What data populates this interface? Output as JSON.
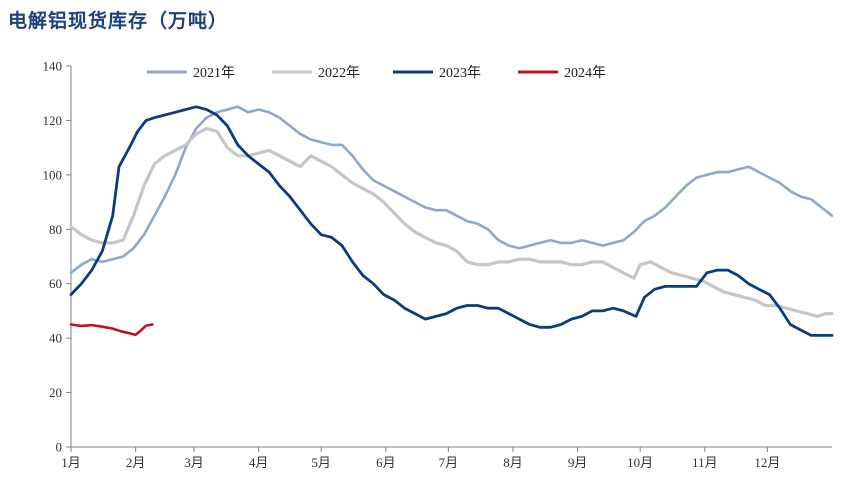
{
  "title": "电解铝现货库存（万吨）",
  "chart_data": {
    "type": "line",
    "title": "电解铝现货库存（万吨）",
    "ylim": [
      0,
      140
    ],
    "yticks": [
      0,
      20,
      40,
      60,
      80,
      100,
      120,
      140
    ],
    "xlim": [
      0,
      365
    ],
    "xticks": [
      {
        "label": "1月",
        "day": 0
      },
      {
        "label": "2月",
        "day": 31
      },
      {
        "label": "3月",
        "day": 59
      },
      {
        "label": "4月",
        "day": 90
      },
      {
        "label": "5月",
        "day": 120
      },
      {
        "label": "6月",
        "day": 151
      },
      {
        "label": "7月",
        "day": 181
      },
      {
        "label": "8月",
        "day": 212
      },
      {
        "label": "9月",
        "day": 243
      },
      {
        "label": "10月",
        "day": 273
      },
      {
        "label": "11月",
        "day": 304
      },
      {
        "label": "12月",
        "day": 334
      }
    ],
    "legend_position": "top",
    "grid": false,
    "series": [
      {
        "name": "2021年",
        "color": "#8fa8c8",
        "points": [
          [
            0,
            64
          ],
          [
            5,
            67
          ],
          [
            10,
            69
          ],
          [
            15,
            68
          ],
          [
            20,
            69
          ],
          [
            25,
            70
          ],
          [
            30,
            73
          ],
          [
            35,
            78
          ],
          [
            40,
            85
          ],
          [
            45,
            92
          ],
          [
            50,
            100
          ],
          [
            55,
            110
          ],
          [
            60,
            117
          ],
          [
            65,
            121
          ],
          [
            70,
            123
          ],
          [
            75,
            124
          ],
          [
            80,
            125
          ],
          [
            85,
            123
          ],
          [
            90,
            124
          ],
          [
            95,
            123
          ],
          [
            100,
            121
          ],
          [
            105,
            118
          ],
          [
            110,
            115
          ],
          [
            115,
            113
          ],
          [
            120,
            112
          ],
          [
            125,
            111
          ],
          [
            130,
            111
          ],
          [
            135,
            107
          ],
          [
            140,
            102
          ],
          [
            145,
            98
          ],
          [
            150,
            96
          ],
          [
            155,
            94
          ],
          [
            160,
            92
          ],
          [
            165,
            90
          ],
          [
            170,
            88
          ],
          [
            175,
            87
          ],
          [
            180,
            87
          ],
          [
            185,
            85
          ],
          [
            190,
            83
          ],
          [
            195,
            82
          ],
          [
            200,
            80
          ],
          [
            205,
            76
          ],
          [
            210,
            74
          ],
          [
            215,
            73
          ],
          [
            220,
            74
          ],
          [
            225,
            75
          ],
          [
            230,
            76
          ],
          [
            235,
            75
          ],
          [
            240,
            75
          ],
          [
            245,
            76
          ],
          [
            250,
            75
          ],
          [
            255,
            74
          ],
          [
            260,
            75
          ],
          [
            265,
            76
          ],
          [
            270,
            79
          ],
          [
            275,
            83
          ],
          [
            280,
            85
          ],
          [
            285,
            88
          ],
          [
            290,
            92
          ],
          [
            295,
            96
          ],
          [
            300,
            99
          ],
          [
            305,
            100
          ],
          [
            310,
            101
          ],
          [
            315,
            101
          ],
          [
            320,
            102
          ],
          [
            325,
            103
          ],
          [
            330,
            101
          ],
          [
            335,
            99
          ],
          [
            340,
            97
          ],
          [
            345,
            94
          ],
          [
            350,
            92
          ],
          [
            355,
            91
          ],
          [
            360,
            88
          ],
          [
            365,
            85
          ]
        ]
      },
      {
        "name": "2022年",
        "color": "#c6c6c6",
        "points": [
          [
            0,
            81
          ],
          [
            5,
            78
          ],
          [
            10,
            76
          ],
          [
            15,
            75
          ],
          [
            20,
            75
          ],
          [
            25,
            76
          ],
          [
            30,
            85
          ],
          [
            35,
            96
          ],
          [
            40,
            104
          ],
          [
            45,
            107
          ],
          [
            50,
            109
          ],
          [
            55,
            111
          ],
          [
            60,
            115
          ],
          [
            65,
            117
          ],
          [
            70,
            116
          ],
          [
            75,
            110
          ],
          [
            80,
            107
          ],
          [
            85,
            107
          ],
          [
            90,
            108
          ],
          [
            95,
            109
          ],
          [
            100,
            107
          ],
          [
            105,
            105
          ],
          [
            110,
            103
          ],
          [
            115,
            107
          ],
          [
            120,
            105
          ],
          [
            125,
            103
          ],
          [
            130,
            100
          ],
          [
            135,
            97
          ],
          [
            140,
            95
          ],
          [
            145,
            93
          ],
          [
            150,
            90
          ],
          [
            155,
            86
          ],
          [
            160,
            82
          ],
          [
            165,
            79
          ],
          [
            170,
            77
          ],
          [
            175,
            75
          ],
          [
            180,
            74
          ],
          [
            185,
            72
          ],
          [
            190,
            68
          ],
          [
            195,
            67
          ],
          [
            200,
            67
          ],
          [
            205,
            68
          ],
          [
            210,
            68
          ],
          [
            215,
            69
          ],
          [
            220,
            69
          ],
          [
            225,
            68
          ],
          [
            230,
            68
          ],
          [
            235,
            68
          ],
          [
            240,
            67
          ],
          [
            245,
            67
          ],
          [
            250,
            68
          ],
          [
            255,
            68
          ],
          [
            260,
            66
          ],
          [
            265,
            64
          ],
          [
            270,
            62
          ],
          [
            273,
            67
          ],
          [
            278,
            68
          ],
          [
            283,
            66
          ],
          [
            288,
            64
          ],
          [
            293,
            63
          ],
          [
            298,
            62
          ],
          [
            303,
            61
          ],
          [
            308,
            59
          ],
          [
            313,
            57
          ],
          [
            318,
            56
          ],
          [
            323,
            55
          ],
          [
            328,
            54
          ],
          [
            333,
            52
          ],
          [
            338,
            52
          ],
          [
            343,
            51
          ],
          [
            348,
            50
          ],
          [
            353,
            49
          ],
          [
            358,
            48
          ],
          [
            362,
            49
          ],
          [
            365,
            49
          ]
        ]
      },
      {
        "name": "2023年",
        "color": "#0c3c7c",
        "points": [
          [
            0,
            56
          ],
          [
            5,
            60
          ],
          [
            10,
            65
          ],
          [
            15,
            72
          ],
          [
            20,
            85
          ],
          [
            23,
            103
          ],
          [
            28,
            110
          ],
          [
            32,
            116
          ],
          [
            36,
            120
          ],
          [
            40,
            121
          ],
          [
            45,
            122
          ],
          [
            50,
            123
          ],
          [
            55,
            124
          ],
          [
            60,
            125
          ],
          [
            65,
            124
          ],
          [
            70,
            122
          ],
          [
            75,
            118
          ],
          [
            80,
            111
          ],
          [
            85,
            107
          ],
          [
            90,
            104
          ],
          [
            95,
            101
          ],
          [
            100,
            96
          ],
          [
            105,
            92
          ],
          [
            110,
            87
          ],
          [
            115,
            82
          ],
          [
            120,
            78
          ],
          [
            125,
            77
          ],
          [
            130,
            74
          ],
          [
            135,
            68
          ],
          [
            140,
            63
          ],
          [
            145,
            60
          ],
          [
            150,
            56
          ],
          [
            155,
            54
          ],
          [
            160,
            51
          ],
          [
            165,
            49
          ],
          [
            170,
            47
          ],
          [
            175,
            48
          ],
          [
            180,
            49
          ],
          [
            185,
            51
          ],
          [
            190,
            52
          ],
          [
            195,
            52
          ],
          [
            200,
            51
          ],
          [
            205,
            51
          ],
          [
            210,
            49
          ],
          [
            215,
            47
          ],
          [
            220,
            45
          ],
          [
            225,
            44
          ],
          [
            230,
            44
          ],
          [
            235,
            45
          ],
          [
            240,
            47
          ],
          [
            245,
            48
          ],
          [
            250,
            50
          ],
          [
            255,
            50
          ],
          [
            260,
            51
          ],
          [
            265,
            50
          ],
          [
            268,
            49
          ],
          [
            271,
            48
          ],
          [
            275,
            55
          ],
          [
            280,
            58
          ],
          [
            285,
            59
          ],
          [
            290,
            59
          ],
          [
            295,
            59
          ],
          [
            300,
            59
          ],
          [
            305,
            64
          ],
          [
            310,
            65
          ],
          [
            315,
            65
          ],
          [
            320,
            63
          ],
          [
            325,
            60
          ],
          [
            330,
            58
          ],
          [
            335,
            56
          ],
          [
            340,
            51
          ],
          [
            345,
            45
          ],
          [
            350,
            43
          ],
          [
            355,
            41
          ],
          [
            360,
            41
          ],
          [
            365,
            41
          ]
        ]
      },
      {
        "name": "2024年",
        "color": "#c0141c",
        "points": [
          [
            0,
            45
          ],
          [
            5,
            44.5
          ],
          [
            10,
            44.8
          ],
          [
            15,
            44.2
          ],
          [
            20,
            43.5
          ],
          [
            24,
            42.5
          ],
          [
            28,
            41.8
          ],
          [
            31,
            41.2
          ],
          [
            33,
            42.5
          ],
          [
            36,
            44.6
          ],
          [
            39,
            45
          ]
        ]
      }
    ]
  }
}
